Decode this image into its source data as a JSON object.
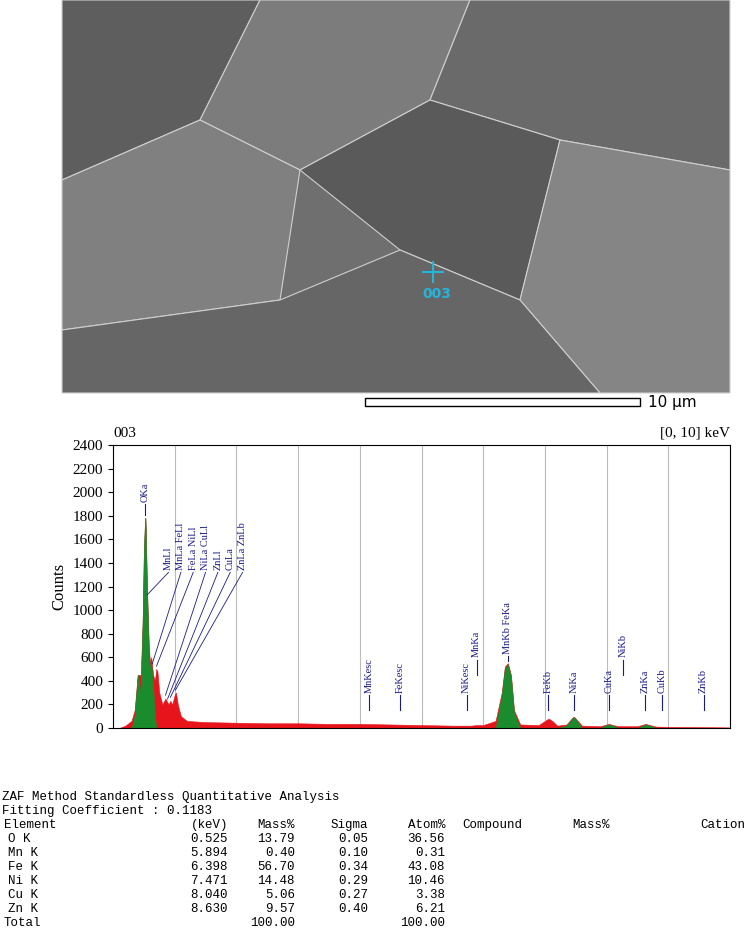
{
  "chart_data": {
    "type": "area",
    "title": "003",
    "subtitle": "[0, 10] keV",
    "y_label": "Counts",
    "x": [
      0.0,
      0.1,
      0.2,
      0.3,
      0.35,
      0.4,
      0.45,
      0.48,
      0.5,
      0.52,
      0.525,
      0.53,
      0.55,
      0.58,
      0.6,
      0.62,
      0.65,
      0.68,
      0.7,
      0.72,
      0.75,
      0.8,
      0.85,
      0.9,
      0.93,
      0.96,
      1.0,
      1.02,
      1.05,
      1.1,
      1.2,
      1.5,
      2.0,
      2.5,
      3.0,
      3.5,
      4.0,
      4.5,
      5.0,
      5.5,
      5.8,
      5.9,
      6.0,
      6.2,
      6.3,
      6.35,
      6.4,
      6.45,
      6.5,
      6.6,
      6.9,
      7.0,
      7.06,
      7.12,
      7.2,
      7.35,
      7.45,
      7.47,
      7.5,
      7.6,
      7.9,
      8.0,
      8.04,
      8.1,
      8.2,
      8.5,
      8.6,
      8.63,
      8.7,
      8.8,
      9.0,
      9.5,
      10.0
    ],
    "series": [
      {
        "color": "#e8141b",
        "values": [
          0,
          0,
          20,
          60,
          150,
          450,
          450,
          900,
          1500,
          1780,
          1780,
          1700,
          1200,
          700,
          550,
          600,
          450,
          400,
          500,
          480,
          300,
          200,
          250,
          200,
          230,
          200,
          280,
          300,
          200,
          100,
          60,
          50,
          45,
          40,
          40,
          35,
          35,
          30,
          25,
          20,
          20,
          25,
          25,
          60,
          300,
          520,
          550,
          450,
          150,
          30,
          25,
          60,
          80,
          60,
          20,
          30,
          90,
          95,
          80,
          20,
          15,
          30,
          35,
          25,
          15,
          15,
          30,
          35,
          25,
          12,
          10,
          8,
          5
        ]
      },
      {
        "color": "#1a8c2e",
        "values": [
          0,
          0,
          0,
          0,
          100,
          450,
          300,
          900,
          1500,
          1780,
          1780,
          1700,
          1200,
          650,
          500,
          550,
          350,
          100,
          0,
          0,
          0,
          0,
          0,
          0,
          0,
          0,
          0,
          0,
          0,
          0,
          0,
          0,
          0,
          0,
          0,
          0,
          0,
          0,
          0,
          0,
          0,
          0,
          0,
          0,
          280,
          500,
          540,
          430,
          130,
          0,
          0,
          0,
          0,
          0,
          0,
          20,
          85,
          90,
          75,
          0,
          0,
          25,
          30,
          20,
          0,
          0,
          25,
          30,
          20,
          0,
          0,
          0,
          0
        ]
      }
    ],
    "xlim": [
      0,
      10
    ],
    "xticks": [
      0,
      1,
      2,
      3,
      4,
      5,
      6,
      7,
      8,
      9,
      10
    ],
    "ylim": [
      0,
      2400
    ],
    "yticks": [
      0,
      200,
      400,
      600,
      800,
      1000,
      1200,
      1400,
      1600,
      1800,
      2000,
      2200,
      2400
    ],
    "grid": true,
    "tick_labels": "y",
    "annotations": [
      {
        "text": "OKa",
        "x": 0.525
      },
      {
        "text": "MnLl",
        "x": 0.556
      },
      {
        "text": "MnLa FeLl",
        "x": 0.637
      },
      {
        "text": "FeLa NiLl",
        "x": 0.705
      },
      {
        "text": "NiLa CuLl",
        "x": 0.851
      },
      {
        "text": "ZnLl",
        "x": 0.884
      },
      {
        "text": "CuLa",
        "x": 0.93
      },
      {
        "text": "ZnLa ZnLb",
        "x": 1.012
      },
      {
        "text": "MnKesc",
        "x": 4.154
      },
      {
        "text": "FeKesc",
        "x": 4.658
      },
      {
        "text": "NiKesc",
        "x": 5.731
      },
      {
        "text": "MnKa",
        "x": 5.894
      },
      {
        "text": "MnKb FeKa",
        "x": 6.398
      },
      {
        "text": "FeKb",
        "x": 7.057
      },
      {
        "text": "NiKa",
        "x": 7.471
      },
      {
        "text": "CuKa",
        "x": 8.04
      },
      {
        "text": "NiKb",
        "x": 8.264
      },
      {
        "text": "ZnKa",
        "x": 8.63
      },
      {
        "text": "CuKb",
        "x": 8.904
      },
      {
        "text": "ZnKb",
        "x": 9.571
      }
    ]
  },
  "image": {
    "marker_label": "003",
    "scale_bar": "10 µm"
  },
  "table": {
    "title": "ZAF Method Standardless Quantitative Analysis",
    "fitting": "Fitting Coefficient : 0.1183",
    "header": [
      "Element",
      "(keV)",
      "Mass%",
      "Sigma",
      "Atom%",
      "Compound",
      "Mass%",
      "Cation"
    ],
    "rows": [
      [
        "O K",
        "0.525",
        "13.79",
        "0.05",
        "36.56"
      ],
      [
        "Mn K",
        "5.894",
        "0.40",
        "0.10",
        "0.31"
      ],
      [
        "Fe K",
        "6.398",
        "56.70",
        "0.34",
        "43.08"
      ],
      [
        "Ni K",
        "7.471",
        "14.48",
        "0.29",
        "10.46"
      ],
      [
        "Cu K",
        "8.040",
        "5.06",
        "0.27",
        "3.38"
      ],
      [
        "Zn K",
        "8.630",
        "9.57",
        "0.40",
        "6.21"
      ]
    ],
    "total": [
      "Total",
      "100.00",
      "100.00"
    ]
  }
}
